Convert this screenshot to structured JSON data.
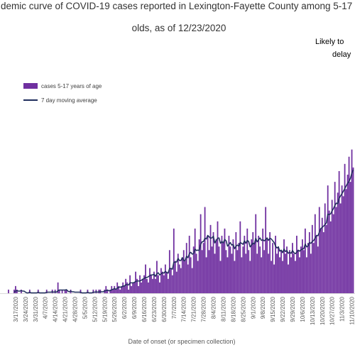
{
  "chart_data": {
    "type": "bar",
    "title": [
      "demic curve of COVID-19 cases reported in Lexington-Fayette County among 5-17",
      "olds, as of 12/23/2020"
    ],
    "annotation": [
      "Likely to",
      "delay"
    ],
    "x_label": "Date of onset (or specimen collection)",
    "ylim": [
      0,
      50
    ],
    "categories": [
      null,
      null,
      null,
      null,
      null,
      null,
      null,
      "3/17/2020",
      null,
      null,
      null,
      null,
      null,
      null,
      "3/24/2020",
      null,
      null,
      null,
      null,
      null,
      null,
      "3/31/2020",
      null,
      null,
      null,
      null,
      null,
      null,
      "4/7/2020",
      null,
      null,
      null,
      null,
      null,
      null,
      "4/14/2020",
      null,
      null,
      null,
      null,
      null,
      null,
      "4/21/2020",
      null,
      null,
      null,
      null,
      null,
      null,
      "4/28/2020",
      null,
      null,
      null,
      null,
      null,
      null,
      "5/5/2020",
      null,
      null,
      null,
      null,
      null,
      null,
      "5/12/2020",
      null,
      null,
      null,
      null,
      null,
      null,
      "5/19/2020",
      null,
      null,
      null,
      null,
      null,
      null,
      "5/26/2020",
      null,
      null,
      null,
      null,
      null,
      null,
      "6/2/2020",
      null,
      null,
      null,
      null,
      null,
      null,
      "6/9/2020",
      null,
      null,
      null,
      null,
      null,
      null,
      "6/16/2020",
      null,
      null,
      null,
      null,
      null,
      null,
      "6/23/2020",
      null,
      null,
      null,
      null,
      null,
      null,
      "6/30/2020",
      null,
      null,
      null,
      null,
      null,
      null,
      "7/7/2020",
      null,
      null,
      null,
      null,
      null,
      null,
      "7/14/2020",
      null,
      null,
      null,
      null,
      null,
      null,
      "7/21/2020",
      null,
      null,
      null,
      null,
      null,
      null,
      "7/28/2020",
      null,
      null,
      null,
      null,
      null,
      null,
      "8/4/2020",
      null,
      null,
      null,
      null,
      null,
      null,
      "8/11/2020",
      null,
      null,
      null,
      null,
      null,
      null,
      "8/18/2020",
      null,
      null,
      null,
      null,
      null,
      null,
      "8/25/2020",
      null,
      null,
      null,
      null,
      null,
      null,
      "9/1/2020",
      null,
      null,
      null,
      null,
      null,
      null,
      "9/8/2020",
      null,
      null,
      null,
      null,
      null,
      null,
      "9/15/2020",
      null,
      null,
      null,
      null,
      null,
      null,
      "9/22/2020",
      null,
      null,
      null,
      null,
      null,
      null,
      "9/29/2020",
      null,
      null,
      null,
      null,
      null,
      null,
      "10/6/2020",
      null,
      null,
      null,
      null,
      null,
      null,
      "10/13/2020",
      null,
      null,
      null,
      null,
      null,
      null,
      "10/20/2020",
      null,
      null,
      null,
      null,
      null,
      null,
      "10/27/2020",
      null,
      null,
      null,
      null,
      null,
      null,
      "11/3/2020",
      null,
      null,
      null,
      null,
      null,
      null,
      "11/10/2020",
      null
    ],
    "series": [
      {
        "name": "cases 5-17 years of age",
        "type": "bar",
        "color": "#7030a0",
        "values": [
          0,
          0,
          1,
          0,
          0,
          0,
          1,
          2,
          1,
          0,
          0,
          1,
          0,
          0,
          0,
          0,
          0,
          1,
          0,
          0,
          0,
          0,
          0,
          1,
          0,
          0,
          0,
          0,
          0,
          1,
          0,
          0,
          0,
          1,
          0,
          1,
          0,
          3,
          1,
          0,
          1,
          0,
          1,
          1,
          0,
          0,
          1,
          0,
          0,
          0,
          0,
          0,
          0,
          1,
          0,
          0,
          0,
          0,
          1,
          0,
          0,
          0,
          1,
          0,
          1,
          0,
          1,
          1,
          0,
          0,
          1,
          2,
          1,
          0,
          1,
          2,
          1,
          2,
          1,
          3,
          2,
          1,
          2,
          3,
          2,
          4,
          3,
          1,
          5,
          2,
          3,
          3,
          6,
          4,
          2,
          5,
          3,
          4,
          5,
          8,
          4,
          3,
          7,
          5,
          4,
          6,
          4,
          9,
          5,
          3,
          7,
          6,
          5,
          8,
          6,
          4,
          12,
          7,
          5,
          18,
          9,
          6,
          11,
          8,
          7,
          10,
          12,
          9,
          14,
          8,
          16,
          10,
          7,
          13,
          18,
          11,
          9,
          15,
          22,
          12,
          14,
          24,
          10,
          16,
          12,
          19,
          13,
          17,
          11,
          15,
          20,
          13,
          9,
          16,
          14,
          18,
          12,
          10,
          16,
          13,
          11,
          15,
          9,
          17,
          12,
          14,
          20,
          10,
          13,
          16,
          11,
          18,
          12,
          9,
          15,
          17,
          14,
          22,
          11,
          16,
          13,
          10,
          18,
          12,
          24,
          15,
          11,
          17,
          9,
          14,
          8,
          16,
          11,
          13,
          10,
          12,
          9,
          15,
          11,
          13,
          8,
          12,
          10,
          14,
          11,
          9,
          16,
          12,
          10,
          13,
          15,
          12,
          18,
          10,
          14,
          17,
          11,
          19,
          14,
          22,
          16,
          13,
          24,
          18,
          21,
          17,
          25,
          19,
          30,
          23,
          20,
          26,
          22,
          31,
          24,
          28,
          34,
          25,
          30,
          27,
          36,
          29,
          33,
          38,
          31,
          40,
          35
        ]
      },
      {
        "name": "7 day moving average",
        "type": "line",
        "color": "#1f2d5c",
        "values": [
          null,
          null,
          null,
          null,
          null,
          null,
          0.3,
          0.6,
          0.7,
          0.6,
          0.6,
          0.7,
          0.6,
          0.6,
          0.3,
          0.1,
          0.1,
          0.3,
          0.1,
          0.1,
          0.1,
          0.1,
          0.1,
          0.3,
          0.1,
          0.1,
          0.1,
          0.1,
          0.1,
          0.3,
          0.3,
          0.3,
          0.3,
          0.4,
          0.3,
          0.4,
          0.3,
          0.7,
          0.9,
          0.9,
          0.9,
          0.9,
          0.9,
          1.0,
          0.6,
          0.4,
          0.6,
          0.4,
          0.4,
          0.3,
          0.3,
          0.3,
          0.3,
          0.3,
          0.1,
          0.1,
          0.1,
          0.1,
          0.3,
          0.1,
          0.1,
          0.1,
          0.3,
          0.3,
          0.4,
          0.3,
          0.4,
          0.4,
          0.4,
          0.4,
          0.6,
          0.7,
          0.9,
          0.7,
          0.7,
          1.0,
          1.1,
          1.3,
          1.1,
          1.4,
          1.7,
          1.7,
          1.7,
          2.0,
          2.0,
          2.4,
          2.4,
          2.3,
          2.9,
          2.9,
          2.9,
          3.0,
          3.3,
          3.4,
          3.4,
          3.4,
          3.6,
          3.9,
          4.1,
          4.4,
          4.4,
          4.6,
          4.9,
          5.1,
          5.1,
          5.3,
          4.7,
          5.4,
          5.7,
          5.1,
          5.4,
          5.7,
          5.6,
          6.1,
          5.7,
          5.6,
          6.9,
          6.9,
          6.7,
          8.6,
          8.7,
          8.7,
          9.7,
          9.1,
          9.1,
          9.9,
          9.1,
          9.1,
          10.3,
          9.9,
          11.0,
          11.4,
          10.9,
          11.0,
          12.3,
          11.9,
          12.0,
          11.9,
          13.6,
          14.3,
          14.4,
          15.3,
          15.1,
          16.1,
          15.7,
          15.3,
          15.4,
          15.9,
          14.0,
          14.7,
          15.3,
          15.4,
          13.9,
          14.4,
          14.0,
          15.0,
          14.6,
          13.1,
          13.6,
          14.1,
          13.4,
          13.6,
          12.4,
          13.1,
          13.4,
          13.1,
          14.1,
          13.9,
          13.6,
          14.6,
          13.9,
          14.7,
          14.4,
          12.9,
          13.4,
          14.0,
          13.7,
          15.3,
          14.3,
          14.9,
          15.4,
          14.7,
          14.9,
          14.6,
          14.9,
          15.4,
          14.7,
          15.3,
          15.1,
          14.6,
          14.1,
          13.1,
          12.6,
          12.9,
          11.7,
          12.0,
          11.3,
          12.3,
          11.6,
          11.9,
          11.1,
          11.4,
          11.1,
          11.9,
          11.3,
          11.0,
          11.4,
          12.0,
          11.7,
          12.1,
          12.3,
          12.4,
          13.7,
          12.9,
          13.1,
          14.1,
          13.9,
          14.4,
          14.7,
          15.3,
          16.1,
          16.0,
          17.0,
          18.0,
          18.3,
          18.7,
          19.1,
          19.6,
          22.0,
          21.9,
          22.1,
          22.9,
          23.6,
          24.4,
          25.1,
          24.9,
          26.4,
          27.1,
          27.7,
          28.4,
          29.1,
          29.9,
          30.6,
          31.1,
          32.0,
          33.4,
          34.4
        ]
      }
    ]
  }
}
